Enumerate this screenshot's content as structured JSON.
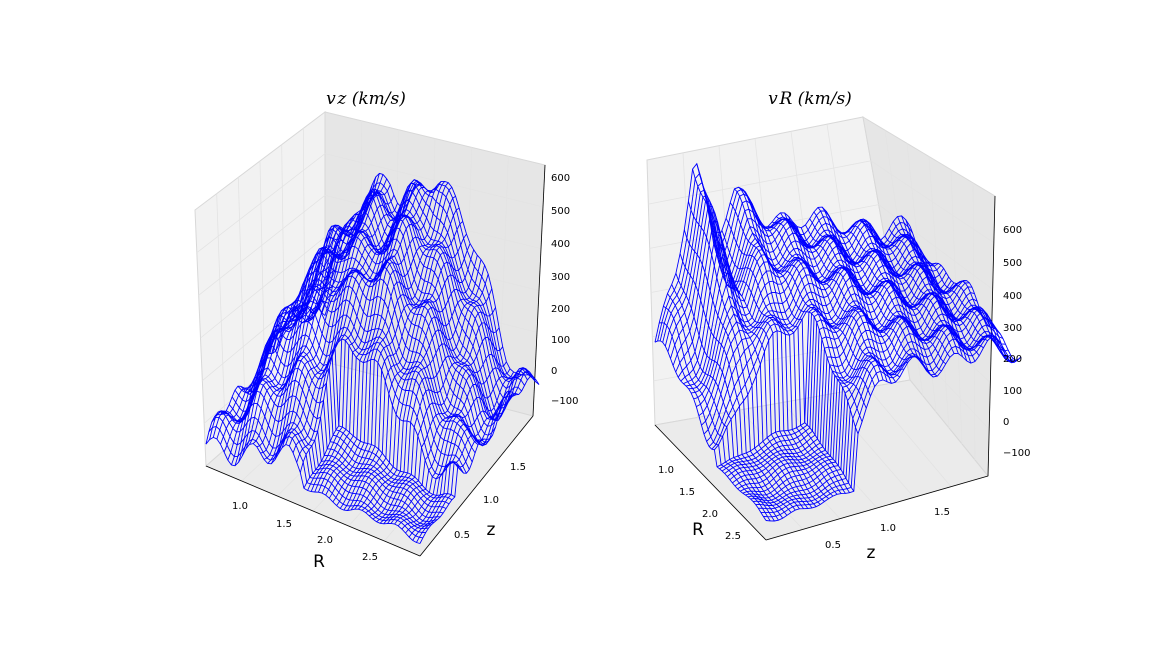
{
  "figure": {
    "background": "#ffffff",
    "wire_color": "#0000ff",
    "pane_colors": [
      "#f2f2f2",
      "#ebebeb",
      "#e6e6e6"
    ]
  },
  "chart_data": [
    {
      "type": "surface-wireframe",
      "title": "v_z(km/s)",
      "title_display": "v z (km/s)",
      "xlabel": "R",
      "ylabel": "z",
      "zlabel": "",
      "xticks": [
        "1.0",
        "1.5",
        "2.0",
        "2.5"
      ],
      "yticks": [
        "0.5",
        "1.0",
        "1.5"
      ],
      "zticks": [
        "600",
        "500",
        "400",
        "300",
        "200",
        "100",
        "0",
        "−100"
      ],
      "xlim": [
        0.7,
        2.8
      ],
      "ylim": [
        0.3,
        1.9
      ],
      "zlim": [
        -150,
        650
      ],
      "grid": true,
      "series": [
        {
          "values_along_R_at_z_high": [
            50,
            200,
            380,
            460,
            520,
            480,
            560,
            600,
            500,
            420,
            300,
            150,
            60,
            100
          ]
        },
        {
          "values_along_R_at_z_mid": [
            40,
            150,
            300,
            350,
            400,
            380,
            420,
            430,
            360,
            300,
            220,
            120,
            40,
            60
          ]
        },
        {
          "values_along_R_at_z_low": [
            -80,
            -60,
            -50,
            -40,
            -40,
            -30,
            -40,
            -50,
            -60,
            -70,
            -80,
            -90,
            -100,
            -100
          ]
        }
      ]
    },
    {
      "type": "surface-wireframe",
      "title": "v_R(km/s)",
      "title_display": "v R (km/s)",
      "xlabel": "R",
      "ylabel": "z",
      "zlabel": "",
      "xticks": [
        "1.0",
        "1.5",
        "2.0",
        "2.5"
      ],
      "yticks": [
        "0.5",
        "1.0",
        "1.5"
      ],
      "zticks": [
        "600",
        "500",
        "400",
        "300",
        "200",
        "100",
        "0",
        "−100"
      ],
      "xlim": [
        0.7,
        2.8
      ],
      "ylim": [
        0.3,
        1.9
      ],
      "zlim": [
        -150,
        650
      ],
      "grid": true,
      "series": [
        {
          "values_along_z_at_R_low": [
            100,
            300,
            650,
            350,
            500,
            450,
            420,
            400,
            380,
            360,
            350,
            340,
            320,
            300
          ]
        },
        {
          "values_along_z_at_R_mid": [
            0,
            50,
            200,
            250,
            300,
            330,
            350,
            360,
            350,
            340,
            330,
            320,
            300,
            280
          ]
        },
        {
          "values_along_z_at_R_high": [
            -60,
            -50,
            -40,
            50,
            100,
            200,
            250,
            280,
            290,
            300,
            300,
            300,
            290,
            280
          ]
        }
      ]
    }
  ]
}
